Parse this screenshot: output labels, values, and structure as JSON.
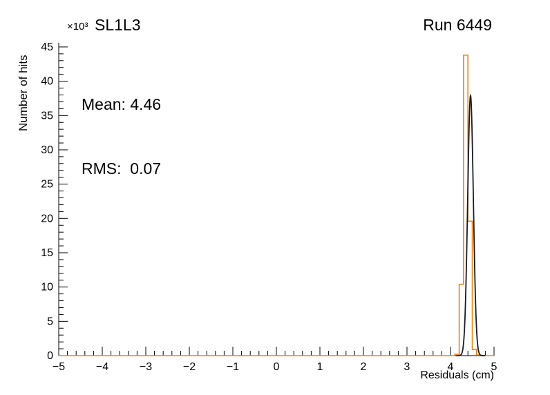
{
  "page": {
    "background": "#ffffff"
  },
  "header": {
    "exponent": "×10³",
    "title": "SL1L3",
    "run": "Run 6449"
  },
  "stats": {
    "mean": "Mean: 4.46",
    "rms": "RMS:  0.07"
  },
  "axes_titles": {
    "x": "Residuals (cm)",
    "y": "Number of hits"
  },
  "colors": {
    "histogram": "#e8851c",
    "fit": "#1b1b22",
    "axis": "#000000",
    "text": "#000000",
    "background": "#ffffff"
  },
  "chart_data": {
    "type": "line",
    "title": "SL1L3",
    "subtitle": "Run 6449",
    "xlabel": "Residuals (cm)",
    "ylabel": "Number of hits",
    "y_scale_exponent": "×10³",
    "xlim": [
      -5,
      5
    ],
    "ylim": [
      0,
      45.6
    ],
    "grid": false,
    "legend": "none",
    "x_ticks": {
      "major_step": 1,
      "minor_step": 0.2,
      "labels": [
        "−5",
        "−4",
        "−3",
        "−2",
        "−1",
        "0",
        "1",
        "2",
        "3",
        "4",
        "5"
      ]
    },
    "y_ticks": {
      "major_step": 5,
      "minor_step": 1,
      "labels": [
        "0",
        "5",
        "10",
        "15",
        "20",
        "25",
        "30",
        "35",
        "40",
        "45"
      ]
    },
    "series": [
      {
        "name": "residuals-histogram",
        "style": "step",
        "color": "#e8851c",
        "units": "10^3 hits",
        "bin_edges": [
          4.1,
          4.2,
          4.3,
          4.4,
          4.5,
          4.6,
          4.7
        ],
        "counts": [
          0.2,
          10.4,
          43.8,
          19.6,
          0.9,
          0.1
        ]
      },
      {
        "name": "gaussian-fit",
        "style": "gaussian",
        "color": "#1b1b22",
        "mean": 4.46,
        "sigma": 0.065,
        "amplitude": 37.9,
        "range": [
          4.12,
          4.8
        ]
      }
    ],
    "annotations": [
      {
        "name": "mean",
        "text": "Mean: 4.46",
        "value": 4.46
      },
      {
        "name": "rms",
        "text": "RMS:  0.07",
        "value": 0.07
      }
    ]
  }
}
